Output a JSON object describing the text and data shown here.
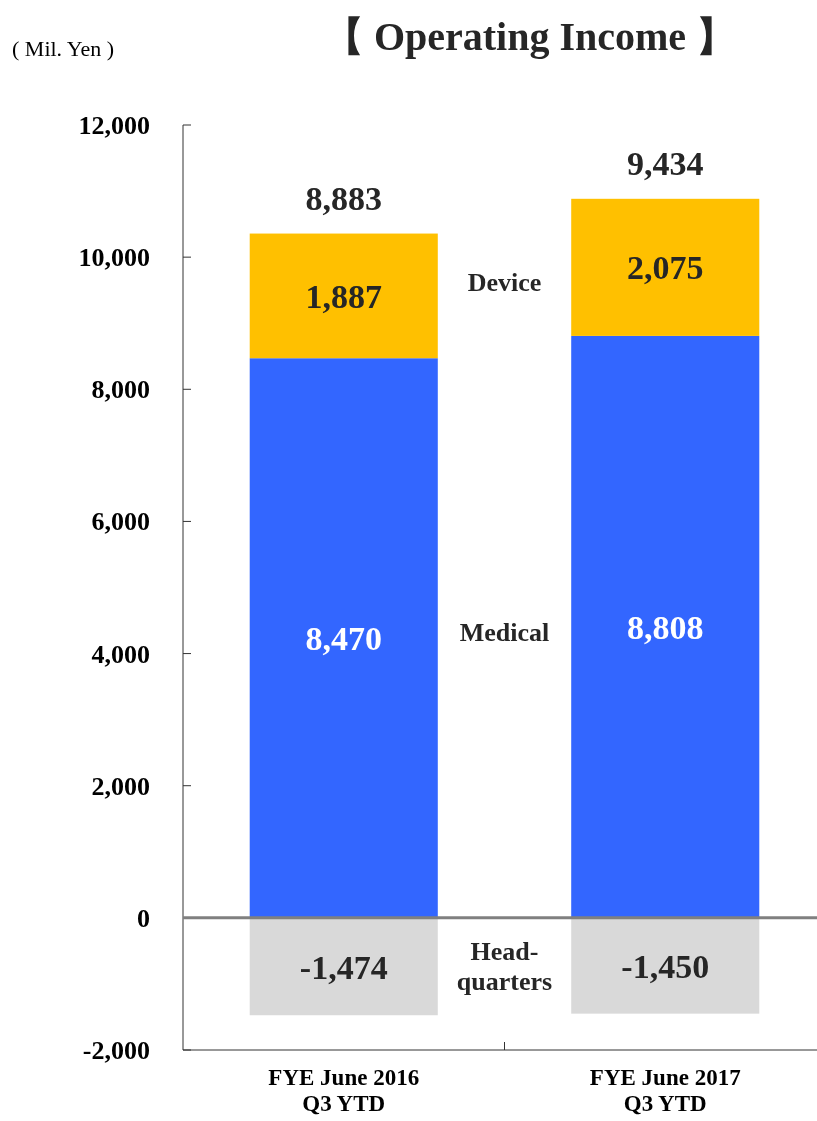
{
  "chart_data": {
    "type": "bar",
    "title": "【 Operating Income 】",
    "ylabel": "( Mil. Yen )",
    "categories": [
      "FYE June 2016\nQ3 YTD",
      "FYE June 2017\nQ3 YTD"
    ],
    "stacked": true,
    "series": [
      {
        "name": "Medical",
        "color": "#3366ff",
        "values": [
          8470,
          8808
        ],
        "value_labels": [
          "8,470",
          "8,808"
        ]
      },
      {
        "name": "Device",
        "color": "#ffc000",
        "values": [
          1887,
          2075
        ],
        "value_labels": [
          "1,887",
          "2,075"
        ]
      },
      {
        "name": "Head-quarters",
        "color": "#d9d9d9",
        "values": [
          -1474,
          -1450
        ],
        "value_labels": [
          "-1,474",
          "-1,450"
        ]
      }
    ],
    "totals": [
      "8,883",
      "9,434"
    ],
    "ylim": [
      -2000,
      12000
    ],
    "yticks": [
      {
        "value": -2000,
        "label": "-2,000"
      },
      0,
      {
        "value": 2000,
        "label": "2,000"
      },
      {
        "value": 4000,
        "label": "4,000"
      },
      {
        "value": 6000,
        "label": "6,000"
      },
      {
        "value": 8000,
        "label": "8,000"
      },
      {
        "value": 10000,
        "label": "10,000"
      },
      {
        "value": 12000,
        "label": "12,000"
      }
    ],
    "ref_lines": [
      {
        "axis": "y",
        "value": 0,
        "color": "#808080"
      }
    ],
    "grid": false
  }
}
